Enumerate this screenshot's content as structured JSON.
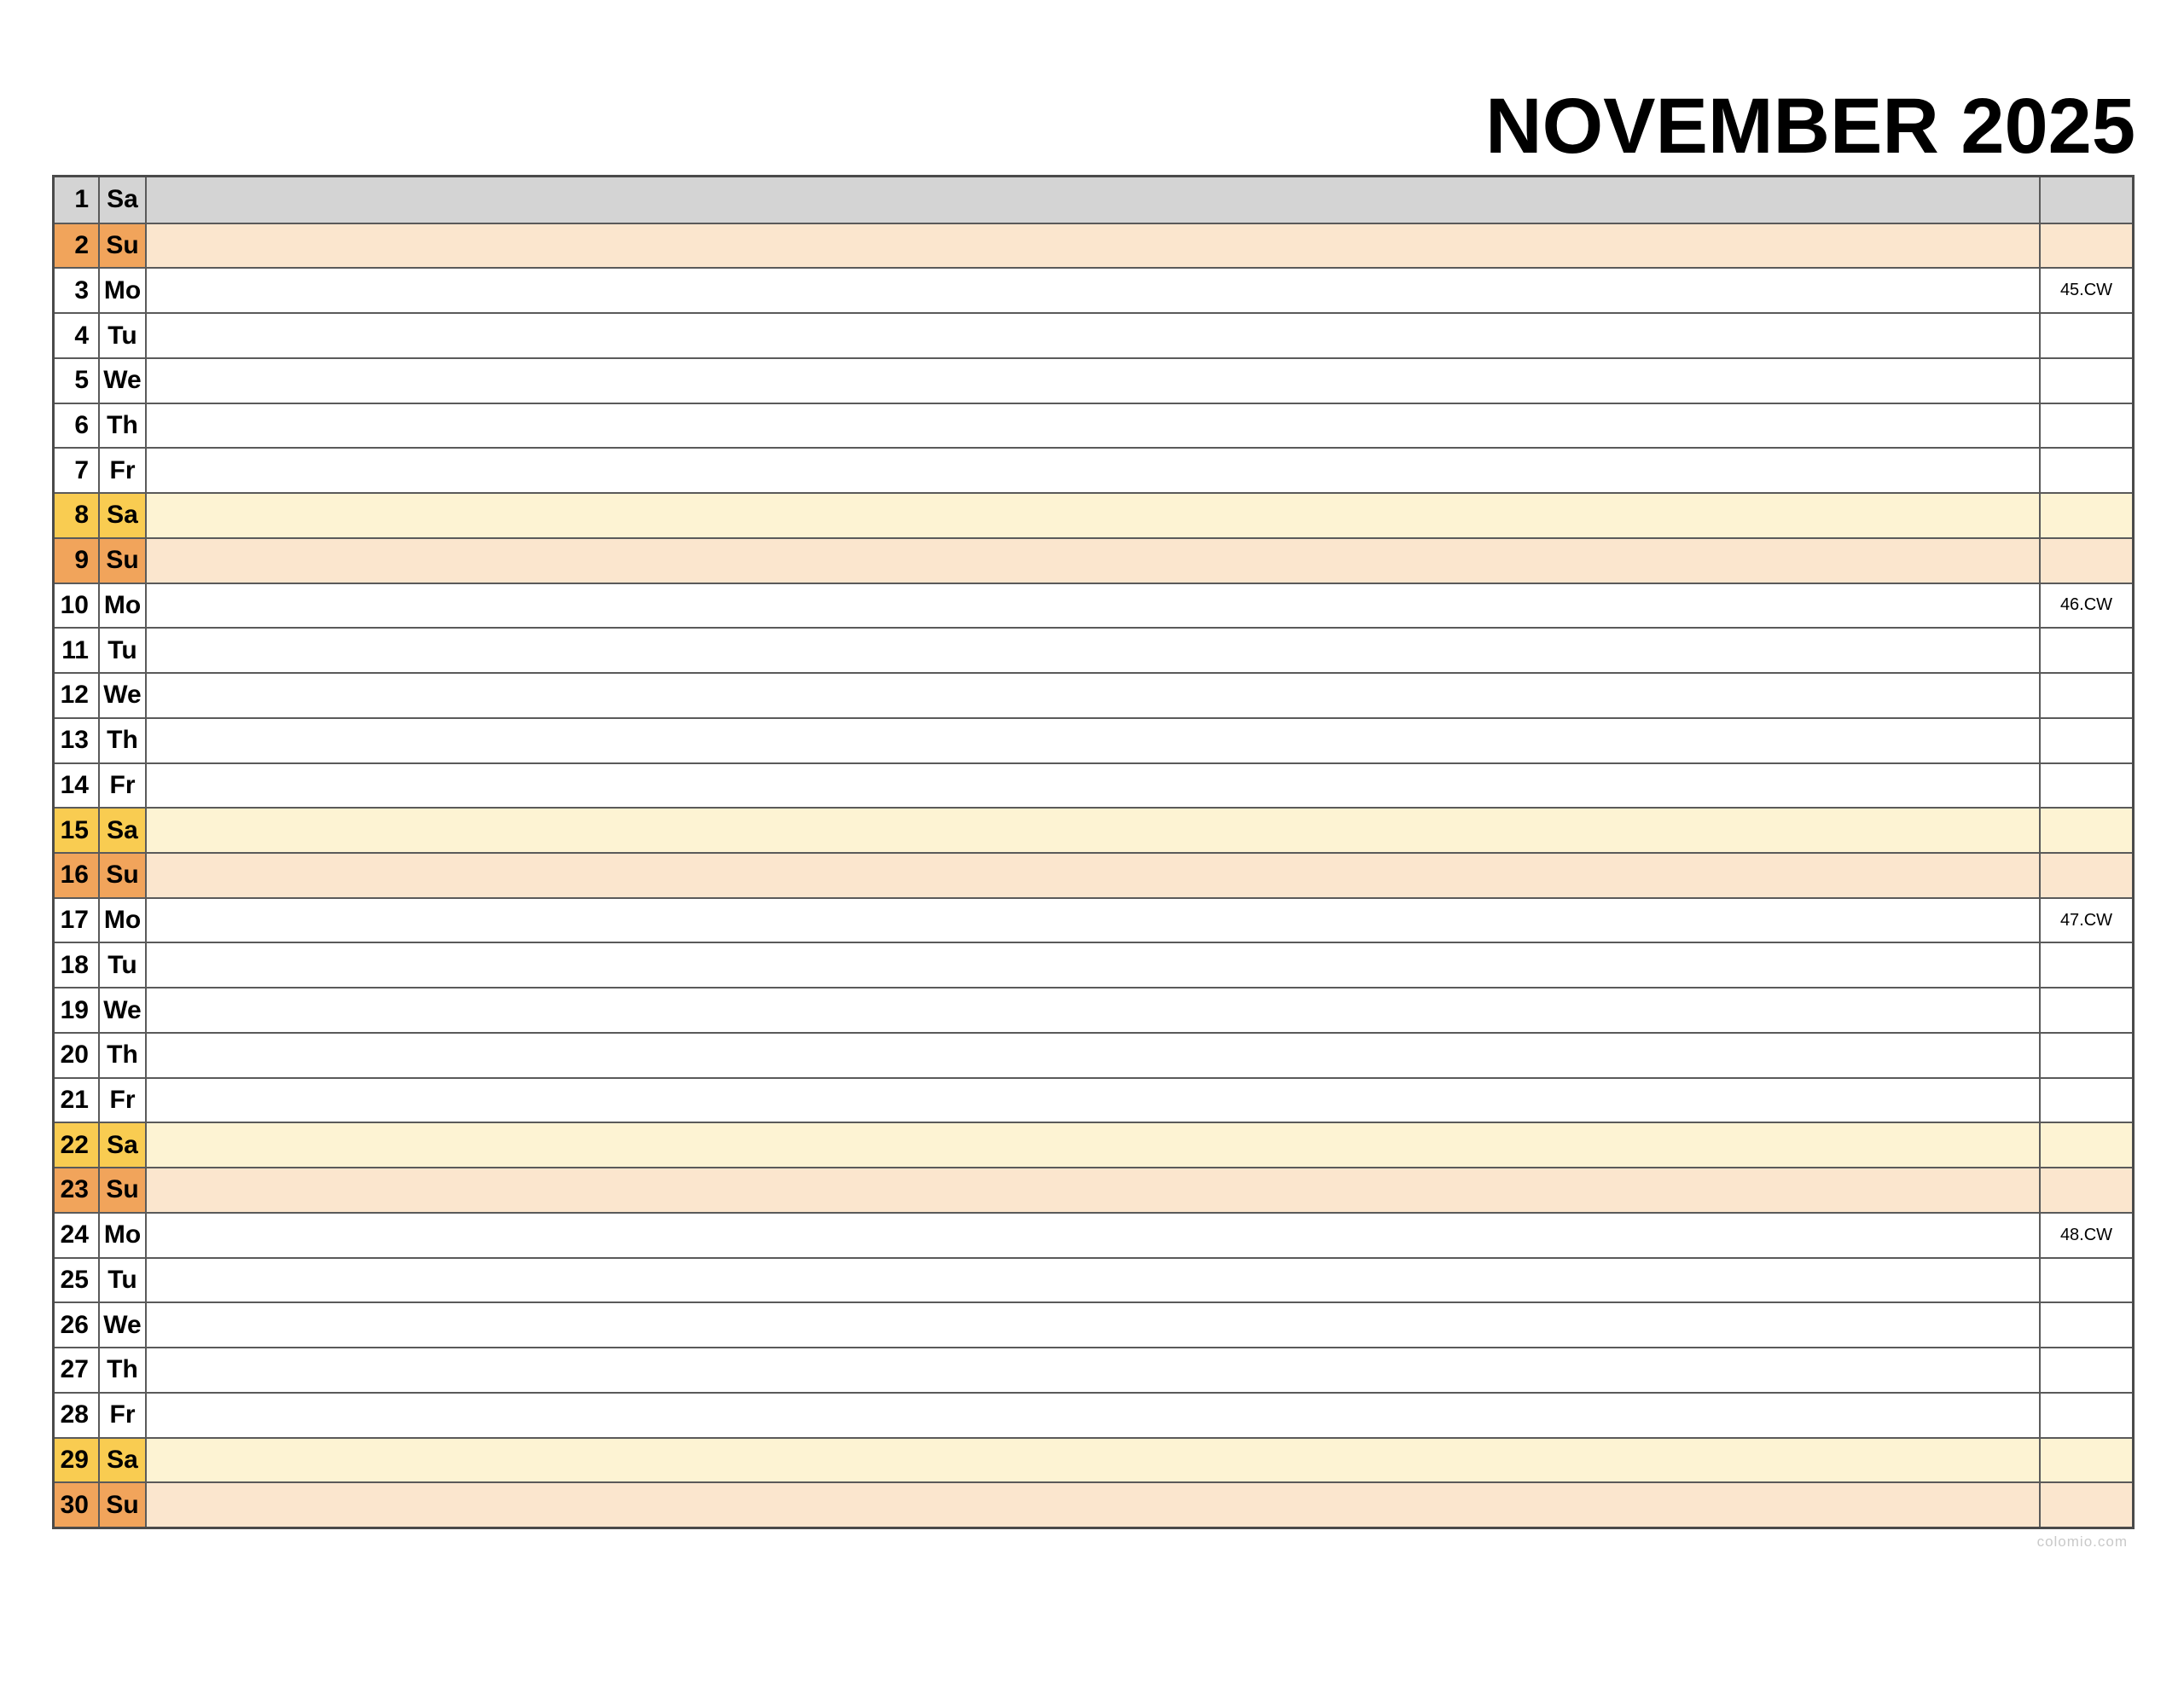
{
  "title": "NOVEMBER 2025",
  "watermark": "colomio.com",
  "colors": {
    "border_outer": "#4a4a4a",
    "border_inner": "#5a5a5a",
    "gray_bg": "#d4d4d4",
    "saturday_head_bg": "#f9cc51",
    "saturday_body_bg": "#fdf3d3",
    "sunday_head_bg": "#f1a45b",
    "sunday_body_bg": "#fbe6ce",
    "weekday_bg": "#ffffff",
    "text_color": "#000000",
    "watermark_color": "#c9c9c9"
  },
  "calendar": {
    "rows": [
      {
        "day": "1",
        "abbr": "Sa",
        "type": "gray",
        "cw": ""
      },
      {
        "day": "2",
        "abbr": "Su",
        "type": "sun",
        "cw": ""
      },
      {
        "day": "3",
        "abbr": "Mo",
        "type": "weekday",
        "cw": "45.CW"
      },
      {
        "day": "4",
        "abbr": "Tu",
        "type": "weekday",
        "cw": ""
      },
      {
        "day": "5",
        "abbr": "We",
        "type": "weekday",
        "cw": ""
      },
      {
        "day": "6",
        "abbr": "Th",
        "type": "weekday",
        "cw": ""
      },
      {
        "day": "7",
        "abbr": "Fr",
        "type": "weekday",
        "cw": ""
      },
      {
        "day": "8",
        "abbr": "Sa",
        "type": "sat",
        "cw": ""
      },
      {
        "day": "9",
        "abbr": "Su",
        "type": "sun",
        "cw": ""
      },
      {
        "day": "10",
        "abbr": "Mo",
        "type": "weekday",
        "cw": "46.CW"
      },
      {
        "day": "11",
        "abbr": "Tu",
        "type": "weekday",
        "cw": ""
      },
      {
        "day": "12",
        "abbr": "We",
        "type": "weekday",
        "cw": ""
      },
      {
        "day": "13",
        "abbr": "Th",
        "type": "weekday",
        "cw": ""
      },
      {
        "day": "14",
        "abbr": "Fr",
        "type": "weekday",
        "cw": ""
      },
      {
        "day": "15",
        "abbr": "Sa",
        "type": "sat",
        "cw": ""
      },
      {
        "day": "16",
        "abbr": "Su",
        "type": "sun",
        "cw": ""
      },
      {
        "day": "17",
        "abbr": "Mo",
        "type": "weekday",
        "cw": "47.CW"
      },
      {
        "day": "18",
        "abbr": "Tu",
        "type": "weekday",
        "cw": ""
      },
      {
        "day": "19",
        "abbr": "We",
        "type": "weekday",
        "cw": ""
      },
      {
        "day": "20",
        "abbr": "Th",
        "type": "weekday",
        "cw": ""
      },
      {
        "day": "21",
        "abbr": "Fr",
        "type": "weekday",
        "cw": ""
      },
      {
        "day": "22",
        "abbr": "Sa",
        "type": "sat",
        "cw": ""
      },
      {
        "day": "23",
        "abbr": "Su",
        "type": "sun",
        "cw": ""
      },
      {
        "day": "24",
        "abbr": "Mo",
        "type": "weekday",
        "cw": "48.CW"
      },
      {
        "day": "25",
        "abbr": "Tu",
        "type": "weekday",
        "cw": ""
      },
      {
        "day": "26",
        "abbr": "We",
        "type": "weekday",
        "cw": ""
      },
      {
        "day": "27",
        "abbr": "Th",
        "type": "weekday",
        "cw": ""
      },
      {
        "day": "28",
        "abbr": "Fr",
        "type": "weekday",
        "cw": ""
      },
      {
        "day": "29",
        "abbr": "Sa",
        "type": "sat",
        "cw": ""
      },
      {
        "day": "30",
        "abbr": "Su",
        "type": "sun",
        "cw": ""
      }
    ]
  }
}
